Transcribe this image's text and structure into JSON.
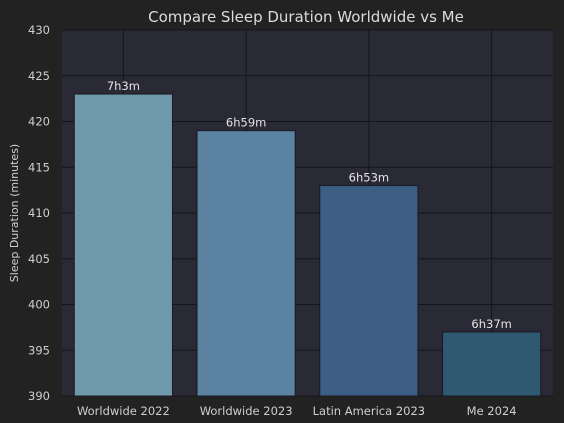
{
  "chart_data": {
    "type": "bar",
    "title": "Compare Sleep Duration Worldwide vs Me",
    "xlabel": "",
    "ylabel": "Sleep Duration (minutes)",
    "ylim": [
      390,
      430
    ],
    "yticks": [
      390,
      395,
      400,
      405,
      410,
      415,
      420,
      425,
      430
    ],
    "grid": true,
    "categories": [
      "Worldwide 2022",
      "Worldwide 2023",
      "Latin America 2023",
      "Me 2024"
    ],
    "values": [
      423,
      419,
      413,
      397
    ],
    "data_labels": [
      "7h3m",
      "6h59m",
      "6h53m",
      "6h37m"
    ],
    "colors": [
      "#6f99aa",
      "#5b82a1",
      "#3d5f85",
      "#2f5872"
    ],
    "plot_background": "#2a2a36",
    "background": "#222222"
  }
}
